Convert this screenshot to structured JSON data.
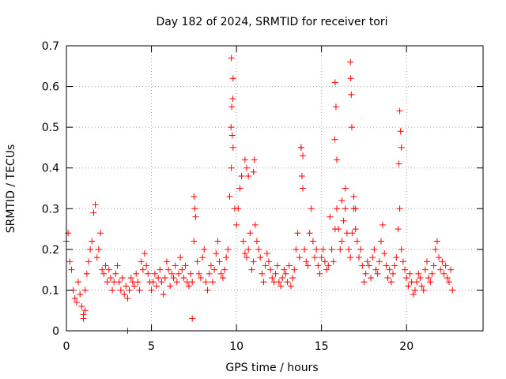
{
  "chart_data": {
    "type": "scatter",
    "title": "Day 182 of 2024, SRMTID for receiver tori",
    "xlabel": "GPS time / hours",
    "ylabel": "SRMTID / TECUs",
    "xlim": [
      0,
      24.5
    ],
    "ylim": [
      0,
      0.7
    ],
    "x_ticks": [
      0,
      5,
      10,
      15,
      20
    ],
    "x_tick_labels": [
      "0",
      "5",
      "10",
      "15",
      "20"
    ],
    "y_ticks": [
      0,
      0.1,
      0.2,
      0.3,
      0.4,
      0.5,
      0.6,
      0.7
    ],
    "y_tick_labels": [
      "0",
      "0.1",
      "0.2",
      "0.3",
      "0.4",
      "0.5",
      "0.6",
      "0.7"
    ],
    "grid": true,
    "marker": "+",
    "color": "#ff0000",
    "series": [
      {
        "name": "SRMTID",
        "x": [
          0.0,
          0.1,
          0.2,
          0.3,
          0.4,
          0.5,
          0.6,
          0.7,
          0.8,
          0.9,
          1.0,
          1.1,
          1.2,
          1.3,
          1.4,
          1.5,
          1.6,
          1.7,
          1.8,
          1.9,
          2.0,
          2.1,
          2.2,
          2.3,
          2.4,
          2.5,
          2.6,
          2.7,
          2.8,
          2.9,
          3.0,
          3.1,
          3.2,
          3.3,
          3.4,
          3.5,
          3.6,
          3.7,
          3.8,
          3.9,
          4.0,
          4.1,
          4.2,
          4.3,
          4.4,
          4.5,
          4.6,
          4.7,
          4.8,
          4.9,
          5.0,
          5.1,
          5.2,
          5.3,
          5.4,
          5.5,
          5.6,
          5.7,
          5.8,
          5.9,
          6.0,
          6.1,
          6.2,
          6.3,
          6.4,
          6.5,
          6.6,
          6.7,
          6.8,
          6.9,
          7.0,
          7.1,
          7.2,
          7.3,
          7.4,
          7.5,
          7.6,
          7.7,
          7.8,
          7.9,
          8.0,
          8.1,
          8.2,
          8.3,
          8.4,
          8.5,
          8.6,
          8.7,
          8.8,
          8.9,
          9.0,
          9.1,
          9.2,
          9.3,
          9.4,
          9.5,
          9.6,
          9.7,
          9.8,
          9.9,
          10.0,
          10.1,
          10.2,
          10.3,
          10.4,
          10.5,
          10.6,
          10.7,
          10.8,
          10.9,
          11.0,
          11.1,
          11.2,
          11.3,
          11.4,
          11.5,
          11.6,
          11.7,
          11.8,
          11.9,
          12.0,
          12.1,
          12.2,
          12.3,
          12.4,
          12.5,
          12.6,
          12.7,
          12.8,
          12.9,
          13.0,
          13.1,
          13.2,
          13.3,
          13.4,
          13.5,
          13.6,
          13.7,
          13.8,
          13.9,
          14.0,
          14.1,
          14.2,
          14.3,
          14.4,
          14.5,
          14.6,
          14.7,
          14.8,
          14.9,
          15.0,
          15.1,
          15.2,
          15.3,
          15.4,
          15.5,
          15.6,
          15.7,
          15.8,
          15.9,
          16.0,
          16.1,
          16.2,
          16.3,
          16.4,
          16.5,
          16.6,
          16.7,
          16.8,
          16.9,
          17.0,
          17.1,
          17.2,
          17.3,
          17.4,
          17.5,
          17.6,
          17.7,
          17.8,
          17.9,
          18.0,
          18.1,
          18.2,
          18.3,
          18.4,
          18.5,
          18.6,
          18.7,
          18.8,
          18.9,
          19.0,
          19.1,
          19.2,
          19.3,
          19.4,
          19.5,
          19.6,
          19.7,
          19.8,
          19.9,
          20.0,
          20.1,
          20.2,
          20.3,
          20.4,
          20.5,
          20.6,
          20.7,
          20.8,
          20.9,
          21.0,
          21.1,
          21.2,
          21.3,
          21.4,
          21.5,
          21.6,
          21.7,
          21.8,
          21.9,
          22.0,
          22.1,
          22.2,
          22.3,
          22.4,
          22.5,
          22.6,
          22.7,
          9.7,
          9.72,
          9.75,
          9.78,
          9.68,
          9.8,
          16.7,
          16.72,
          16.75,
          16.78,
          15.8,
          15.85,
          15.9,
          15.78,
          19.6,
          19.65,
          19.7,
          19.55,
          13.8,
          13.85,
          13.9,
          10.5,
          10.6,
          10.7,
          11.0,
          11.05,
          7.5,
          7.55,
          16.2,
          16.4,
          16.9,
          17.0,
          3.6,
          1.0,
          1.1,
          7.4
        ],
        "y": [
          0.22,
          0.24,
          0.17,
          0.15,
          0.1,
          0.08,
          0.07,
          0.12,
          0.09,
          0.06,
          0.04,
          0.1,
          0.14,
          0.17,
          0.2,
          0.22,
          0.29,
          0.31,
          0.18,
          0.2,
          0.24,
          0.15,
          0.14,
          0.16,
          0.12,
          0.15,
          0.13,
          0.1,
          0.12,
          0.14,
          0.16,
          0.12,
          0.1,
          0.13,
          0.09,
          0.11,
          0.08,
          0.1,
          0.13,
          0.12,
          0.11,
          0.14,
          0.12,
          0.1,
          0.17,
          0.15,
          0.19,
          0.16,
          0.14,
          0.12,
          0.1,
          0.12,
          0.14,
          0.11,
          0.13,
          0.15,
          0.12,
          0.09,
          0.13,
          0.17,
          0.15,
          0.11,
          0.14,
          0.13,
          0.16,
          0.12,
          0.14,
          0.18,
          0.15,
          0.13,
          0.16,
          0.12,
          0.11,
          0.14,
          0.12,
          0.22,
          0.28,
          0.17,
          0.14,
          0.13,
          0.18,
          0.2,
          0.12,
          0.1,
          0.14,
          0.16,
          0.12,
          0.15,
          0.19,
          0.22,
          0.17,
          0.14,
          0.13,
          0.15,
          0.18,
          0.2,
          0.33,
          0.4,
          0.62,
          0.3,
          0.26,
          0.3,
          0.35,
          0.38,
          0.22,
          0.19,
          0.18,
          0.2,
          0.24,
          0.15,
          0.17,
          0.26,
          0.22,
          0.2,
          0.18,
          0.14,
          0.12,
          0.16,
          0.19,
          0.17,
          0.15,
          0.13,
          0.12,
          0.14,
          0.16,
          0.12,
          0.11,
          0.13,
          0.15,
          0.14,
          0.12,
          0.16,
          0.11,
          0.13,
          0.15,
          0.2,
          0.24,
          0.18,
          0.45,
          0.35,
          0.2,
          0.17,
          0.16,
          0.24,
          0.3,
          0.22,
          0.18,
          0.2,
          0.16,
          0.14,
          0.18,
          0.2,
          0.17,
          0.15,
          0.16,
          0.28,
          0.2,
          0.17,
          0.25,
          0.3,
          0.25,
          0.2,
          0.22,
          0.27,
          0.3,
          0.24,
          0.2,
          0.18,
          0.24,
          0.3,
          0.25,
          0.22,
          0.18,
          0.2,
          0.16,
          0.12,
          0.14,
          0.17,
          0.16,
          0.13,
          0.18,
          0.2,
          0.15,
          0.14,
          0.17,
          0.22,
          0.26,
          0.19,
          0.16,
          0.13,
          0.15,
          0.12,
          0.14,
          0.16,
          0.18,
          0.25,
          0.3,
          0.2,
          0.17,
          0.15,
          0.13,
          0.11,
          0.14,
          0.12,
          0.09,
          0.1,
          0.12,
          0.14,
          0.13,
          0.11,
          0.1,
          0.15,
          0.17,
          0.13,
          0.12,
          0.14,
          0.16,
          0.2,
          0.22,
          0.18,
          0.15,
          0.17,
          0.14,
          0.16,
          0.13,
          0.12,
          0.15,
          0.1,
          0.67,
          0.55,
          0.48,
          0.57,
          0.5,
          0.45,
          0.66,
          0.62,
          0.58,
          0.5,
          0.61,
          0.55,
          0.42,
          0.47,
          0.54,
          0.49,
          0.45,
          0.41,
          0.45,
          0.38,
          0.43,
          0.42,
          0.4,
          0.38,
          0.39,
          0.42,
          0.33,
          0.3,
          0.32,
          0.35,
          0.33,
          0.3,
          0.0,
          0.03,
          0.05,
          0.03
        ]
      }
    ]
  }
}
